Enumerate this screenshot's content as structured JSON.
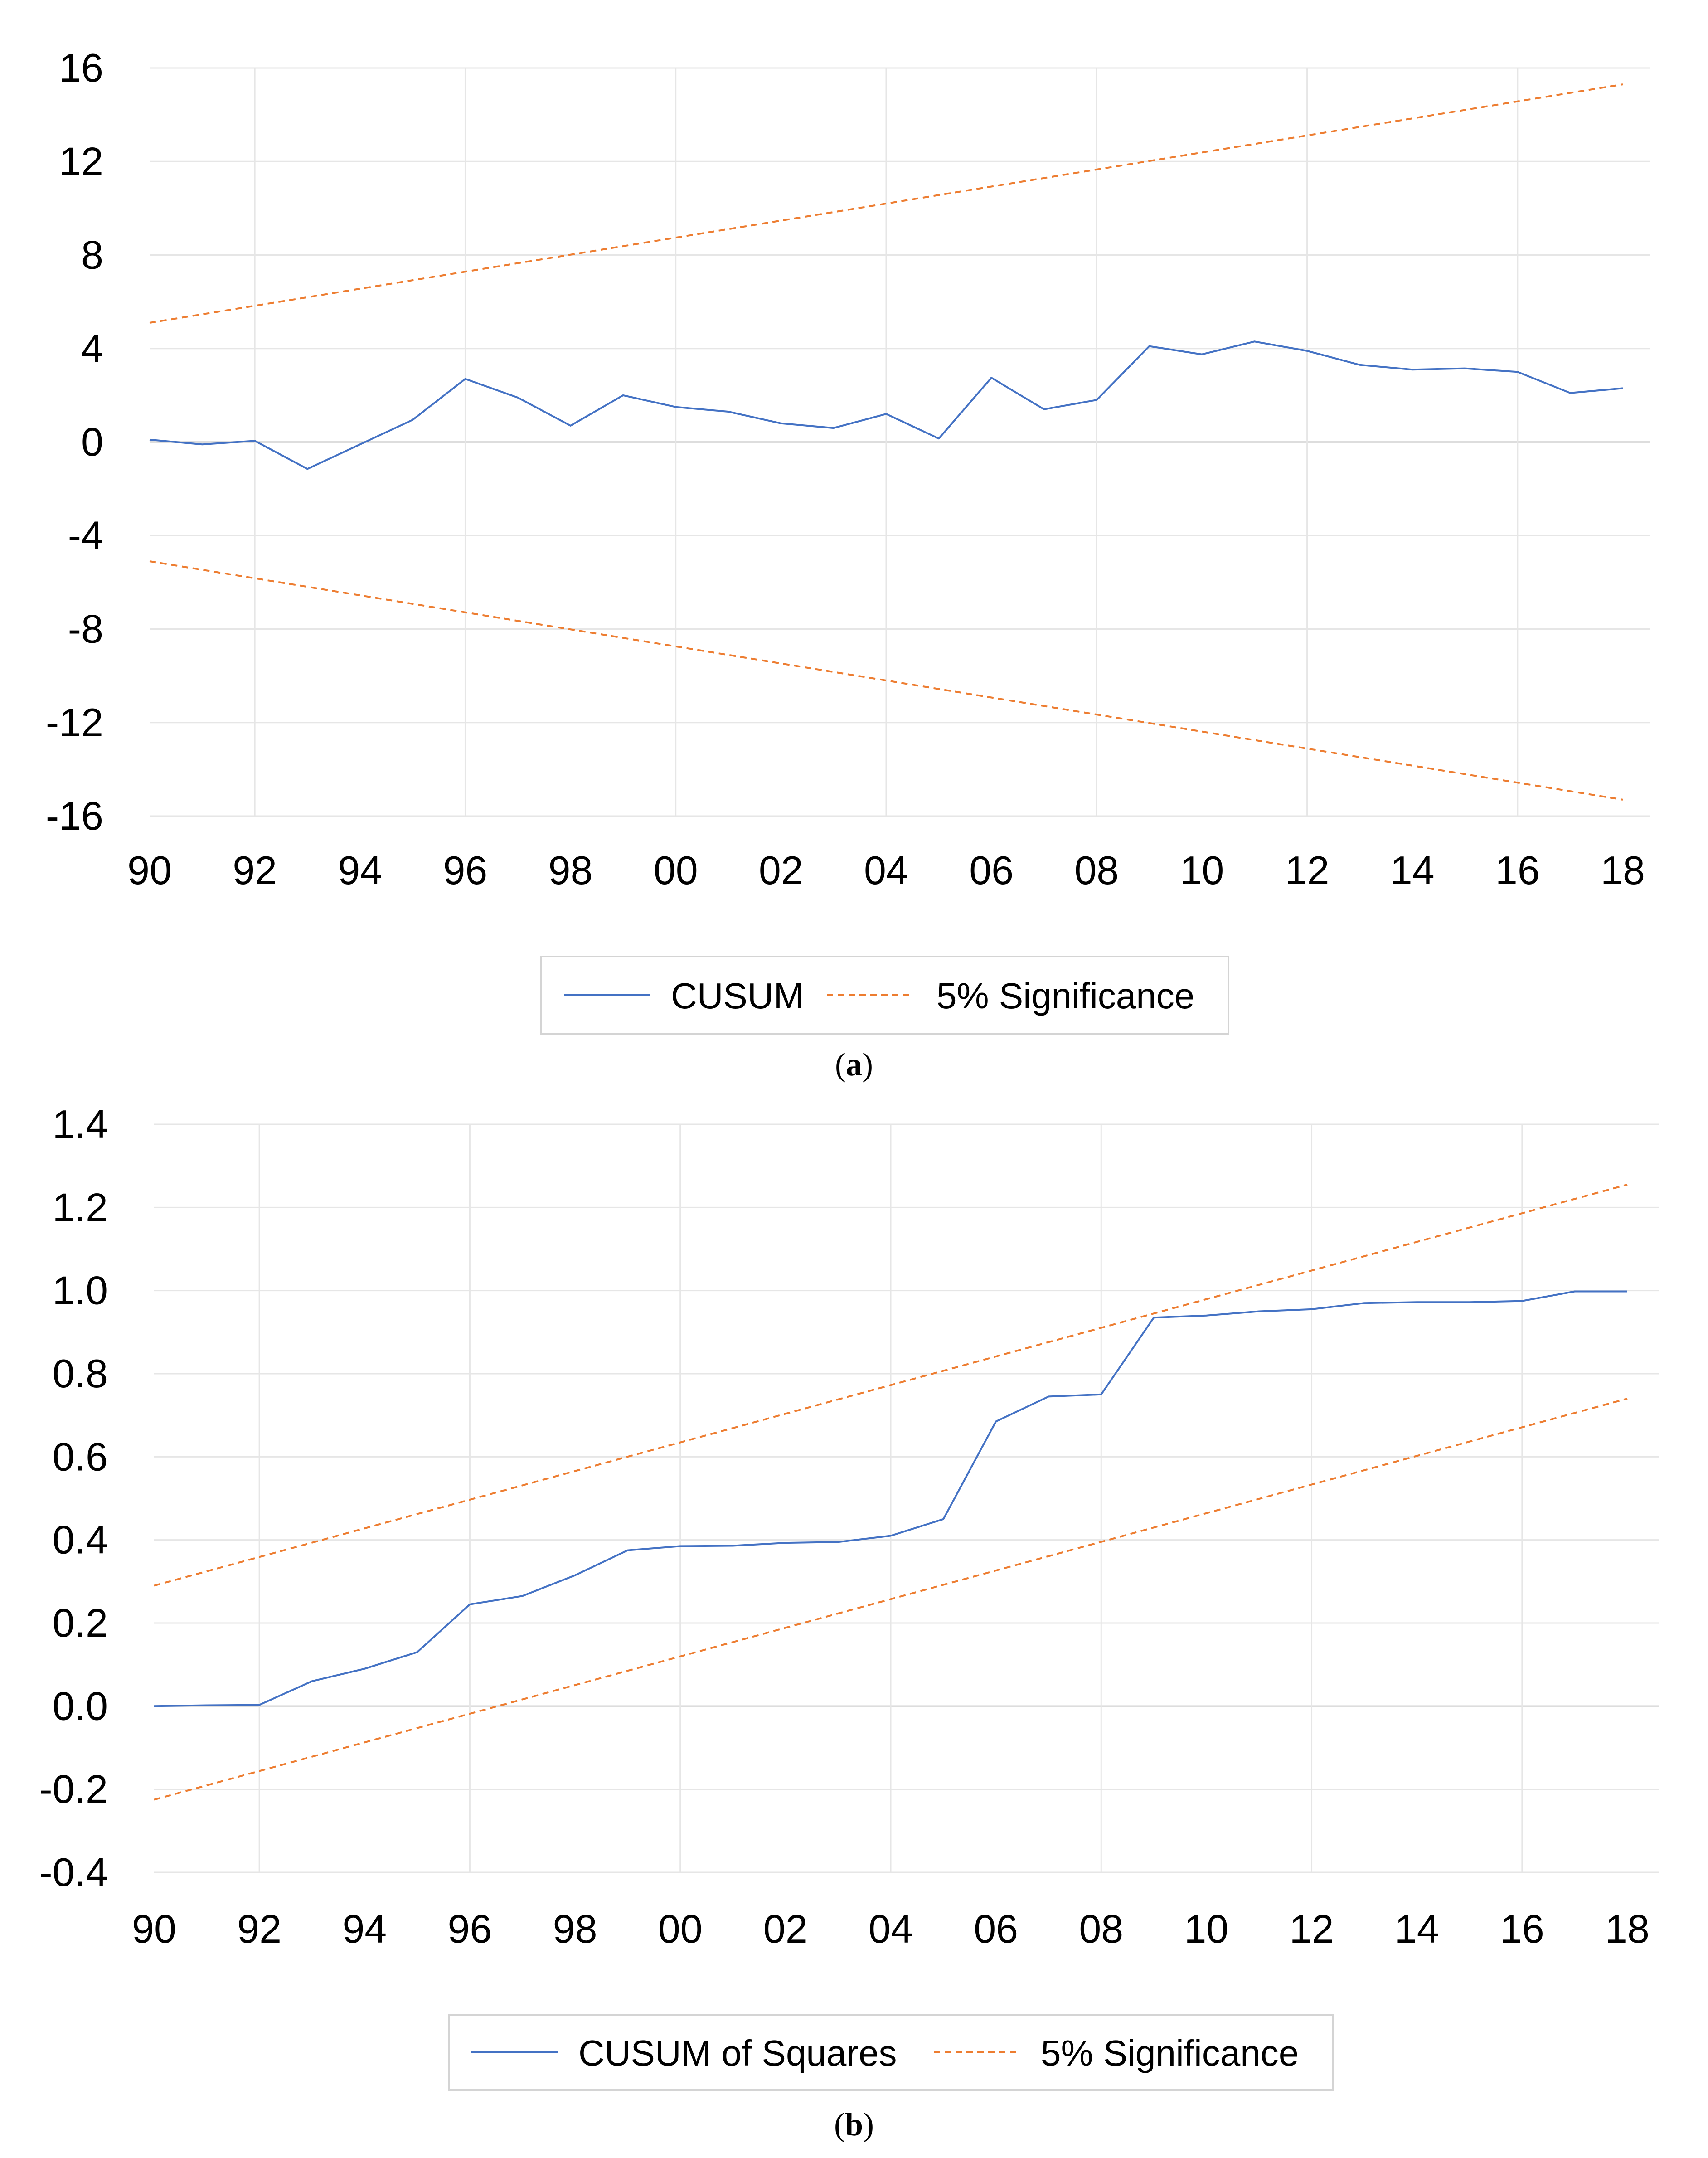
{
  "chart_data": [
    {
      "type": "line",
      "panel_label": "a",
      "title": "",
      "xlabel": "",
      "ylabel": "",
      "x_tick_labels": [
        "90",
        "92",
        "94",
        "96",
        "98",
        "00",
        "02",
        "04",
        "06",
        "08",
        "10",
        "12",
        "14",
        "16",
        "18"
      ],
      "x_range": [
        1990,
        2018
      ],
      "ylim": [
        -16,
        16
      ],
      "y_ticks": [
        16,
        12,
        8,
        4,
        0,
        -4,
        -8,
        -12,
        -16
      ],
      "y_tick_labels": [
        "16",
        "12",
        "8",
        "4",
        "0",
        "-4",
        "-8",
        "-12",
        "-16"
      ],
      "grid": true,
      "legend_position": "bottom-center",
      "series": [
        {
          "name": "CUSUM",
          "color": "#4472c4",
          "style": "solid",
          "x": [
            1990,
            1991,
            1992,
            1993,
            1994,
            1995,
            1996,
            1997,
            1998,
            1999,
            2000,
            2001,
            2002,
            2003,
            2004,
            2005,
            2006,
            2007,
            2008,
            2009,
            2010,
            2011,
            2012,
            2013,
            2014,
            2015,
            2016,
            2017,
            2018
          ],
          "values": [
            0.1,
            -0.1,
            0.05,
            -1.15,
            -0.1,
            0.95,
            2.7,
            1.9,
            0.7,
            2.0,
            1.5,
            1.3,
            0.8,
            0.6,
            1.2,
            0.15,
            2.75,
            1.4,
            1.8,
            4.1,
            3.75,
            4.3,
            3.9,
            3.3,
            3.1,
            3.15,
            3.0,
            2.1,
            2.3
          ]
        },
        {
          "name": "5% Significance",
          "color": "#ed7d31",
          "style": "dashed",
          "x": [
            1990,
            2018
          ],
          "values": [
            5.1,
            15.3
          ]
        },
        {
          "name": "5% Significance (lower)",
          "color": "#ed7d31",
          "style": "dashed",
          "x": [
            1990,
            2018
          ],
          "values": [
            -5.1,
            -15.3
          ]
        }
      ],
      "legend": [
        "CUSUM",
        "5% Significance"
      ]
    },
    {
      "type": "line",
      "panel_label": "b",
      "title": "",
      "xlabel": "",
      "ylabel": "",
      "x_tick_labels": [
        "90",
        "92",
        "94",
        "96",
        "98",
        "00",
        "02",
        "04",
        "06",
        "08",
        "10",
        "12",
        "14",
        "16",
        "18"
      ],
      "x_range": [
        1990,
        2018
      ],
      "ylim": [
        -0.4,
        1.4
      ],
      "y_ticks": [
        1.4,
        1.2,
        1.0,
        0.8,
        0.6,
        0.4,
        0.2,
        0.0,
        -0.2,
        -0.4
      ],
      "y_tick_labels": [
        "1.4",
        "1.2",
        "1.0",
        "0.8",
        "0.6",
        "0.4",
        "0.2",
        "0.0",
        "-0.2",
        "-0.4"
      ],
      "grid": true,
      "legend_position": "bottom-center",
      "series": [
        {
          "name": "CUSUM of Squares",
          "color": "#4472c4",
          "style": "solid",
          "x": [
            1990,
            1991,
            1992,
            1993,
            1994,
            1995,
            1996,
            1997,
            1998,
            1999,
            2000,
            2001,
            2002,
            2003,
            2004,
            2005,
            2006,
            2007,
            2008,
            2009,
            2010,
            2011,
            2012,
            2013,
            2014,
            2015,
            2016,
            2017,
            2018
          ],
          "values": [
            0.0,
            0.002,
            0.003,
            0.06,
            0.09,
            0.13,
            0.245,
            0.265,
            0.315,
            0.375,
            0.385,
            0.386,
            0.393,
            0.395,
            0.41,
            0.45,
            0.685,
            0.745,
            0.75,
            0.935,
            0.94,
            0.95,
            0.955,
            0.97,
            0.972,
            0.972,
            0.975,
            0.998,
            0.998
          ]
        },
        {
          "name": "5% Significance",
          "color": "#ed7d31",
          "style": "dashed",
          "x": [
            1990,
            2018
          ],
          "values": [
            0.29,
            1.255
          ]
        },
        {
          "name": "5% Significance (lower)",
          "color": "#ed7d31",
          "style": "dashed",
          "x": [
            1990,
            2018
          ],
          "values": [
            -0.225,
            0.74
          ]
        }
      ],
      "legend": [
        "CUSUM of Squares",
        "5% Significance"
      ]
    }
  ]
}
